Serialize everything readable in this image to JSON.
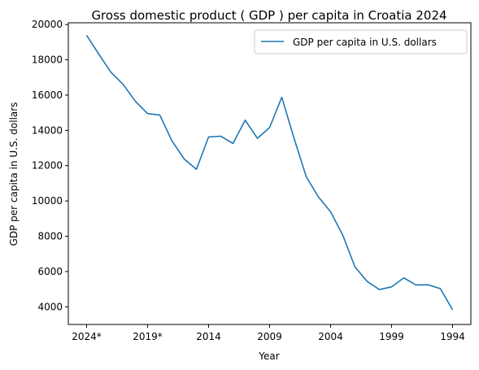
{
  "chart_data": {
    "type": "line",
    "title": "Gross domestic product ( GDP ) per capita in Croatia 2024",
    "xlabel": "Year",
    "ylabel": "GDP per capita in U.S. dollars",
    "x": [
      "2024*",
      "2023*",
      "2022*",
      "2021*",
      "2020*",
      "2019*",
      "2018",
      "2017",
      "2016",
      "2015",
      "2014",
      "2013",
      "2012",
      "2011",
      "2010",
      "2009",
      "2008",
      "2007",
      "2006",
      "2005",
      "2004",
      "2003",
      "2002",
      "2001",
      "2000",
      "1999",
      "1998",
      "1997",
      "1996",
      "1995",
      "1994"
    ],
    "x_tick_labels": [
      "2024*",
      "2019*",
      "2014",
      "2009",
      "2004",
      "1999",
      "1994"
    ],
    "y_tick_labels": [
      "4000",
      "6000",
      "8000",
      "10000",
      "12000",
      "14000",
      "16000",
      "18000",
      "20000"
    ],
    "ylim": [
      3000,
      20100
    ],
    "grid": false,
    "legend_position": "top-right",
    "series": [
      {
        "name": "GDP per capita in U.S. dollars",
        "color": "#1f77b4",
        "values": [
          19390,
          18320,
          17290,
          16600,
          15650,
          14950,
          14870,
          13400,
          12380,
          11790,
          13630,
          13670,
          13260,
          14580,
          13550,
          14160,
          15880,
          13560,
          11380,
          10230,
          9390,
          8060,
          6260,
          5440,
          4980,
          5130,
          5640,
          5240,
          5250,
          5030,
          3830
        ]
      }
    ]
  }
}
